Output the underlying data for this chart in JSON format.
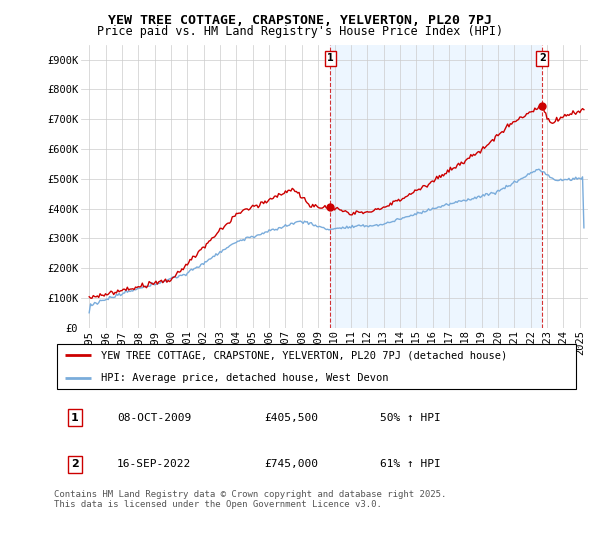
{
  "title1": "YEW TREE COTTAGE, CRAPSTONE, YELVERTON, PL20 7PJ",
  "title2": "Price paid vs. HM Land Registry's House Price Index (HPI)",
  "ylim": [
    0,
    950000
  ],
  "yticks": [
    0,
    100000,
    200000,
    300000,
    400000,
    500000,
    600000,
    700000,
    800000,
    900000
  ],
  "ytick_labels": [
    "£0",
    "£100K",
    "£200K",
    "£300K",
    "£400K",
    "£500K",
    "£600K",
    "£700K",
    "£800K",
    "£900K"
  ],
  "red_color": "#cc0000",
  "blue_color": "#7aacdb",
  "blue_fill": "#ddeeff",
  "marker1_x": 2009.75,
  "marker1_y": 405500,
  "marker2_x": 2022.7,
  "marker2_y": 745000,
  "legend1": "YEW TREE COTTAGE, CRAPSTONE, YELVERTON, PL20 7PJ (detached house)",
  "legend2": "HPI: Average price, detached house, West Devon",
  "table_row1": [
    "1",
    "08-OCT-2009",
    "£405,500",
    "50% ↑ HPI"
  ],
  "table_row2": [
    "2",
    "16-SEP-2022",
    "£745,000",
    "61% ↑ HPI"
  ],
  "footnote": "Contains HM Land Registry data © Crown copyright and database right 2025.\nThis data is licensed under the Open Government Licence v3.0.",
  "xmin": 1994.5,
  "xmax": 2025.5,
  "xticks": [
    1995,
    1996,
    1997,
    1998,
    1999,
    2000,
    2001,
    2002,
    2003,
    2004,
    2005,
    2006,
    2007,
    2008,
    2009,
    2010,
    2011,
    2012,
    2013,
    2014,
    2015,
    2016,
    2017,
    2018,
    2019,
    2020,
    2021,
    2022,
    2023,
    2024,
    2025
  ],
  "grid_color": "#cccccc",
  "title1_fontsize": 9.5,
  "title2_fontsize": 8.5,
  "tick_fontsize": 7.5,
  "legend_fontsize": 7.5,
  "table_fontsize": 8.0,
  "footnote_fontsize": 6.5
}
